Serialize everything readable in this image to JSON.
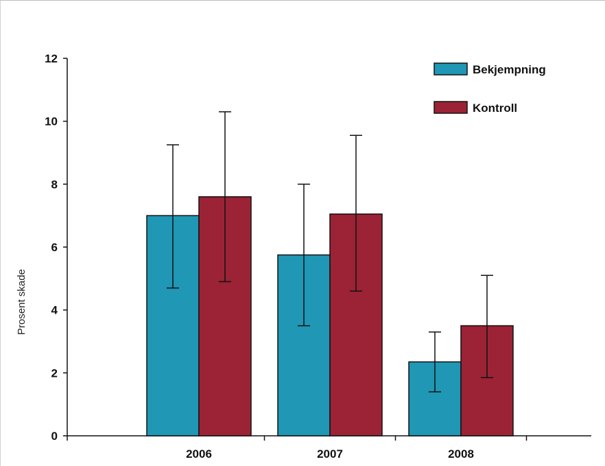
{
  "chart_data": {
    "type": "bar",
    "title": "",
    "xlabel": "",
    "ylabel": "Prosent skade",
    "categories": [
      "2006",
      "2007",
      "2008"
    ],
    "series": [
      {
        "name": "Bekjempning",
        "color": "#1f97b5",
        "values": [
          7.0,
          5.75,
          2.35
        ],
        "error_low": [
          4.7,
          3.5,
          1.4
        ],
        "error_high": [
          9.25,
          8.0,
          3.3
        ]
      },
      {
        "name": "Kontroll",
        "color": "#9b2335",
        "values": [
          7.6,
          7.05,
          3.5
        ],
        "error_low": [
          4.9,
          4.6,
          1.85
        ],
        "error_high": [
          10.3,
          9.55,
          5.1
        ]
      }
    ],
    "yticks": [
      0,
      2,
      4,
      6,
      8,
      10,
      12
    ],
    "ylim": [
      0,
      12
    ],
    "grid": false,
    "legend": "top-right"
  }
}
